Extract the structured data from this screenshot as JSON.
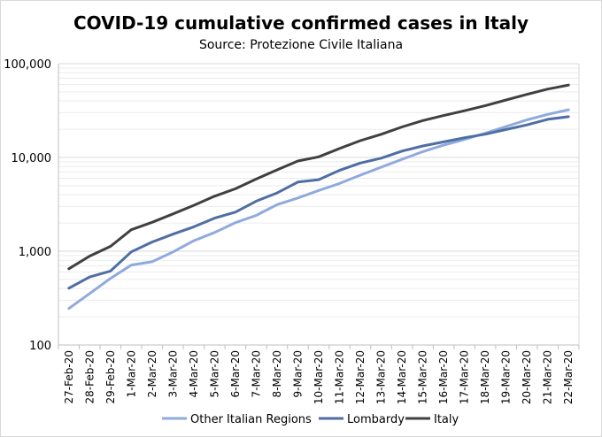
{
  "chart_data": {
    "type": "line",
    "title": "COVID-19 cumulative confirmed cases in Italy",
    "subtitle": "Source: Protezione Civile Italiana",
    "y_scale": "log",
    "ylim": [
      100,
      100000
    ],
    "y_ticks": [
      "100",
      "1,000",
      "10,000",
      "100,000"
    ],
    "grid": "horizontal major and minor",
    "legend_position": "bottom",
    "categories": [
      "27-Feb-20",
      "28-Feb-20",
      "29-Feb-20",
      "1-Mar-20",
      "2-Mar-20",
      "3-Mar-20",
      "4-Mar-20",
      "5-Mar-20",
      "6-Mar-20",
      "7-Mar-20",
      "8-Mar-20",
      "9-Mar-20",
      "10-Mar-20",
      "11-Mar-20",
      "12-Mar-20",
      "13-Mar-20",
      "14-Mar-20",
      "15-Mar-20",
      "16-Mar-20",
      "17-Mar-20",
      "18-Mar-20",
      "19-Mar-20",
      "20-Mar-20",
      "21-Mar-20",
      "22-Mar-20"
    ],
    "series": [
      {
        "name": "Other Italian Regions",
        "color": "#8faadc",
        "values": [
          245,
          354,
          513,
          712,
          773,
          982,
          1294,
          1584,
          2015,
          2411,
          3140,
          3701,
          4451,
          5283,
          6471,
          7871,
          9559,
          11548,
          13518,
          15554,
          18156,
          21384,
          25165,
          28807,
          32219
        ]
      },
      {
        "name": "Lombardy",
        "color": "#4f6ea3",
        "values": [
          403,
          531,
          615,
          984,
          1254,
          1520,
          1820,
          2251,
          2612,
          3420,
          4189,
          5469,
          5791,
          7280,
          8725,
          9820,
          11685,
          13272,
          14649,
          16220,
          17713,
          19884,
          22264,
          25515,
          27206
        ]
      },
      {
        "name": "Italy",
        "color": "#404040",
        "values": [
          650,
          888,
          1128,
          1694,
          2036,
          2502,
          3089,
          3858,
          4636,
          5883,
          7375,
          9172,
          10149,
          12462,
          15113,
          17660,
          21157,
          24747,
          27980,
          31506,
          35713,
          41035,
          47021,
          53578,
          59138
        ]
      }
    ]
  }
}
